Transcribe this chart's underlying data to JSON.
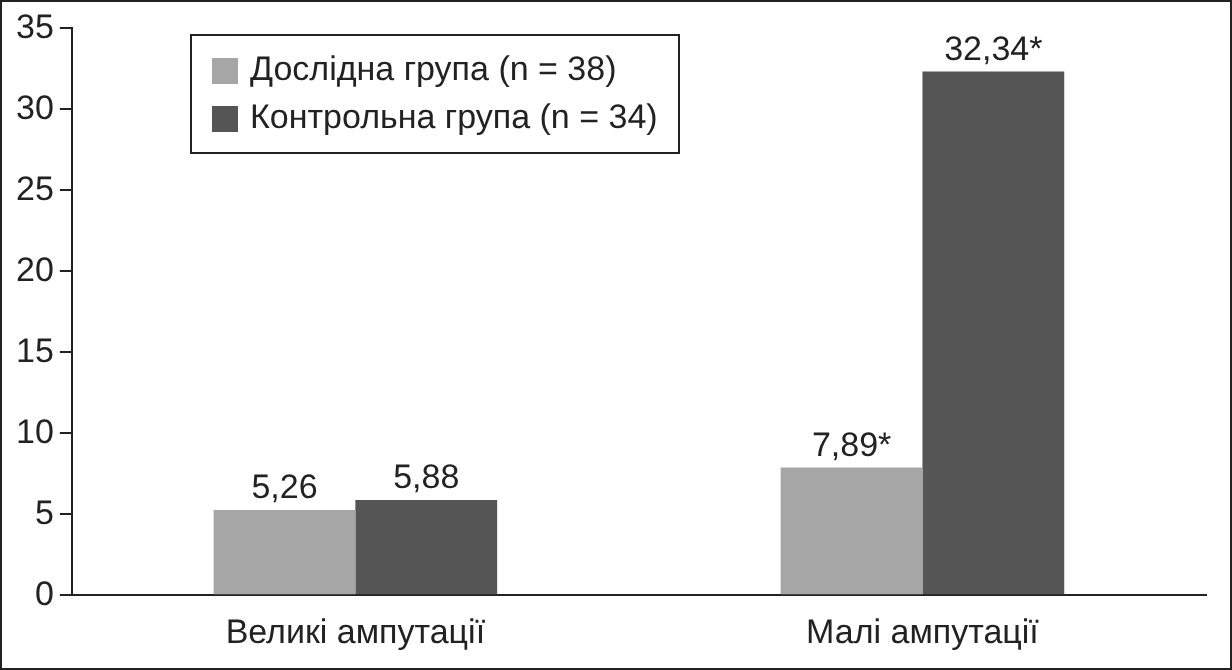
{
  "chart_data": {
    "type": "bar",
    "categories": [
      "Великі ампутації",
      "Малі ампутації"
    ],
    "series": [
      {
        "name": "Дослідна група (n = 38)",
        "color": "#a6a6a6",
        "values": [
          5.26,
          7.89
        ],
        "value_labels": [
          "5,26",
          "7,89*"
        ]
      },
      {
        "name": "Контрольна група (n = 34)",
        "color": "#555555",
        "values": [
          5.88,
          32.34
        ],
        "value_labels": [
          "5,88",
          "32,34*"
        ]
      }
    ],
    "ylim": [
      0,
      35
    ],
    "yticks": [
      0,
      5,
      10,
      15,
      20,
      25,
      30,
      35
    ],
    "grid": false,
    "legend": "top left"
  }
}
